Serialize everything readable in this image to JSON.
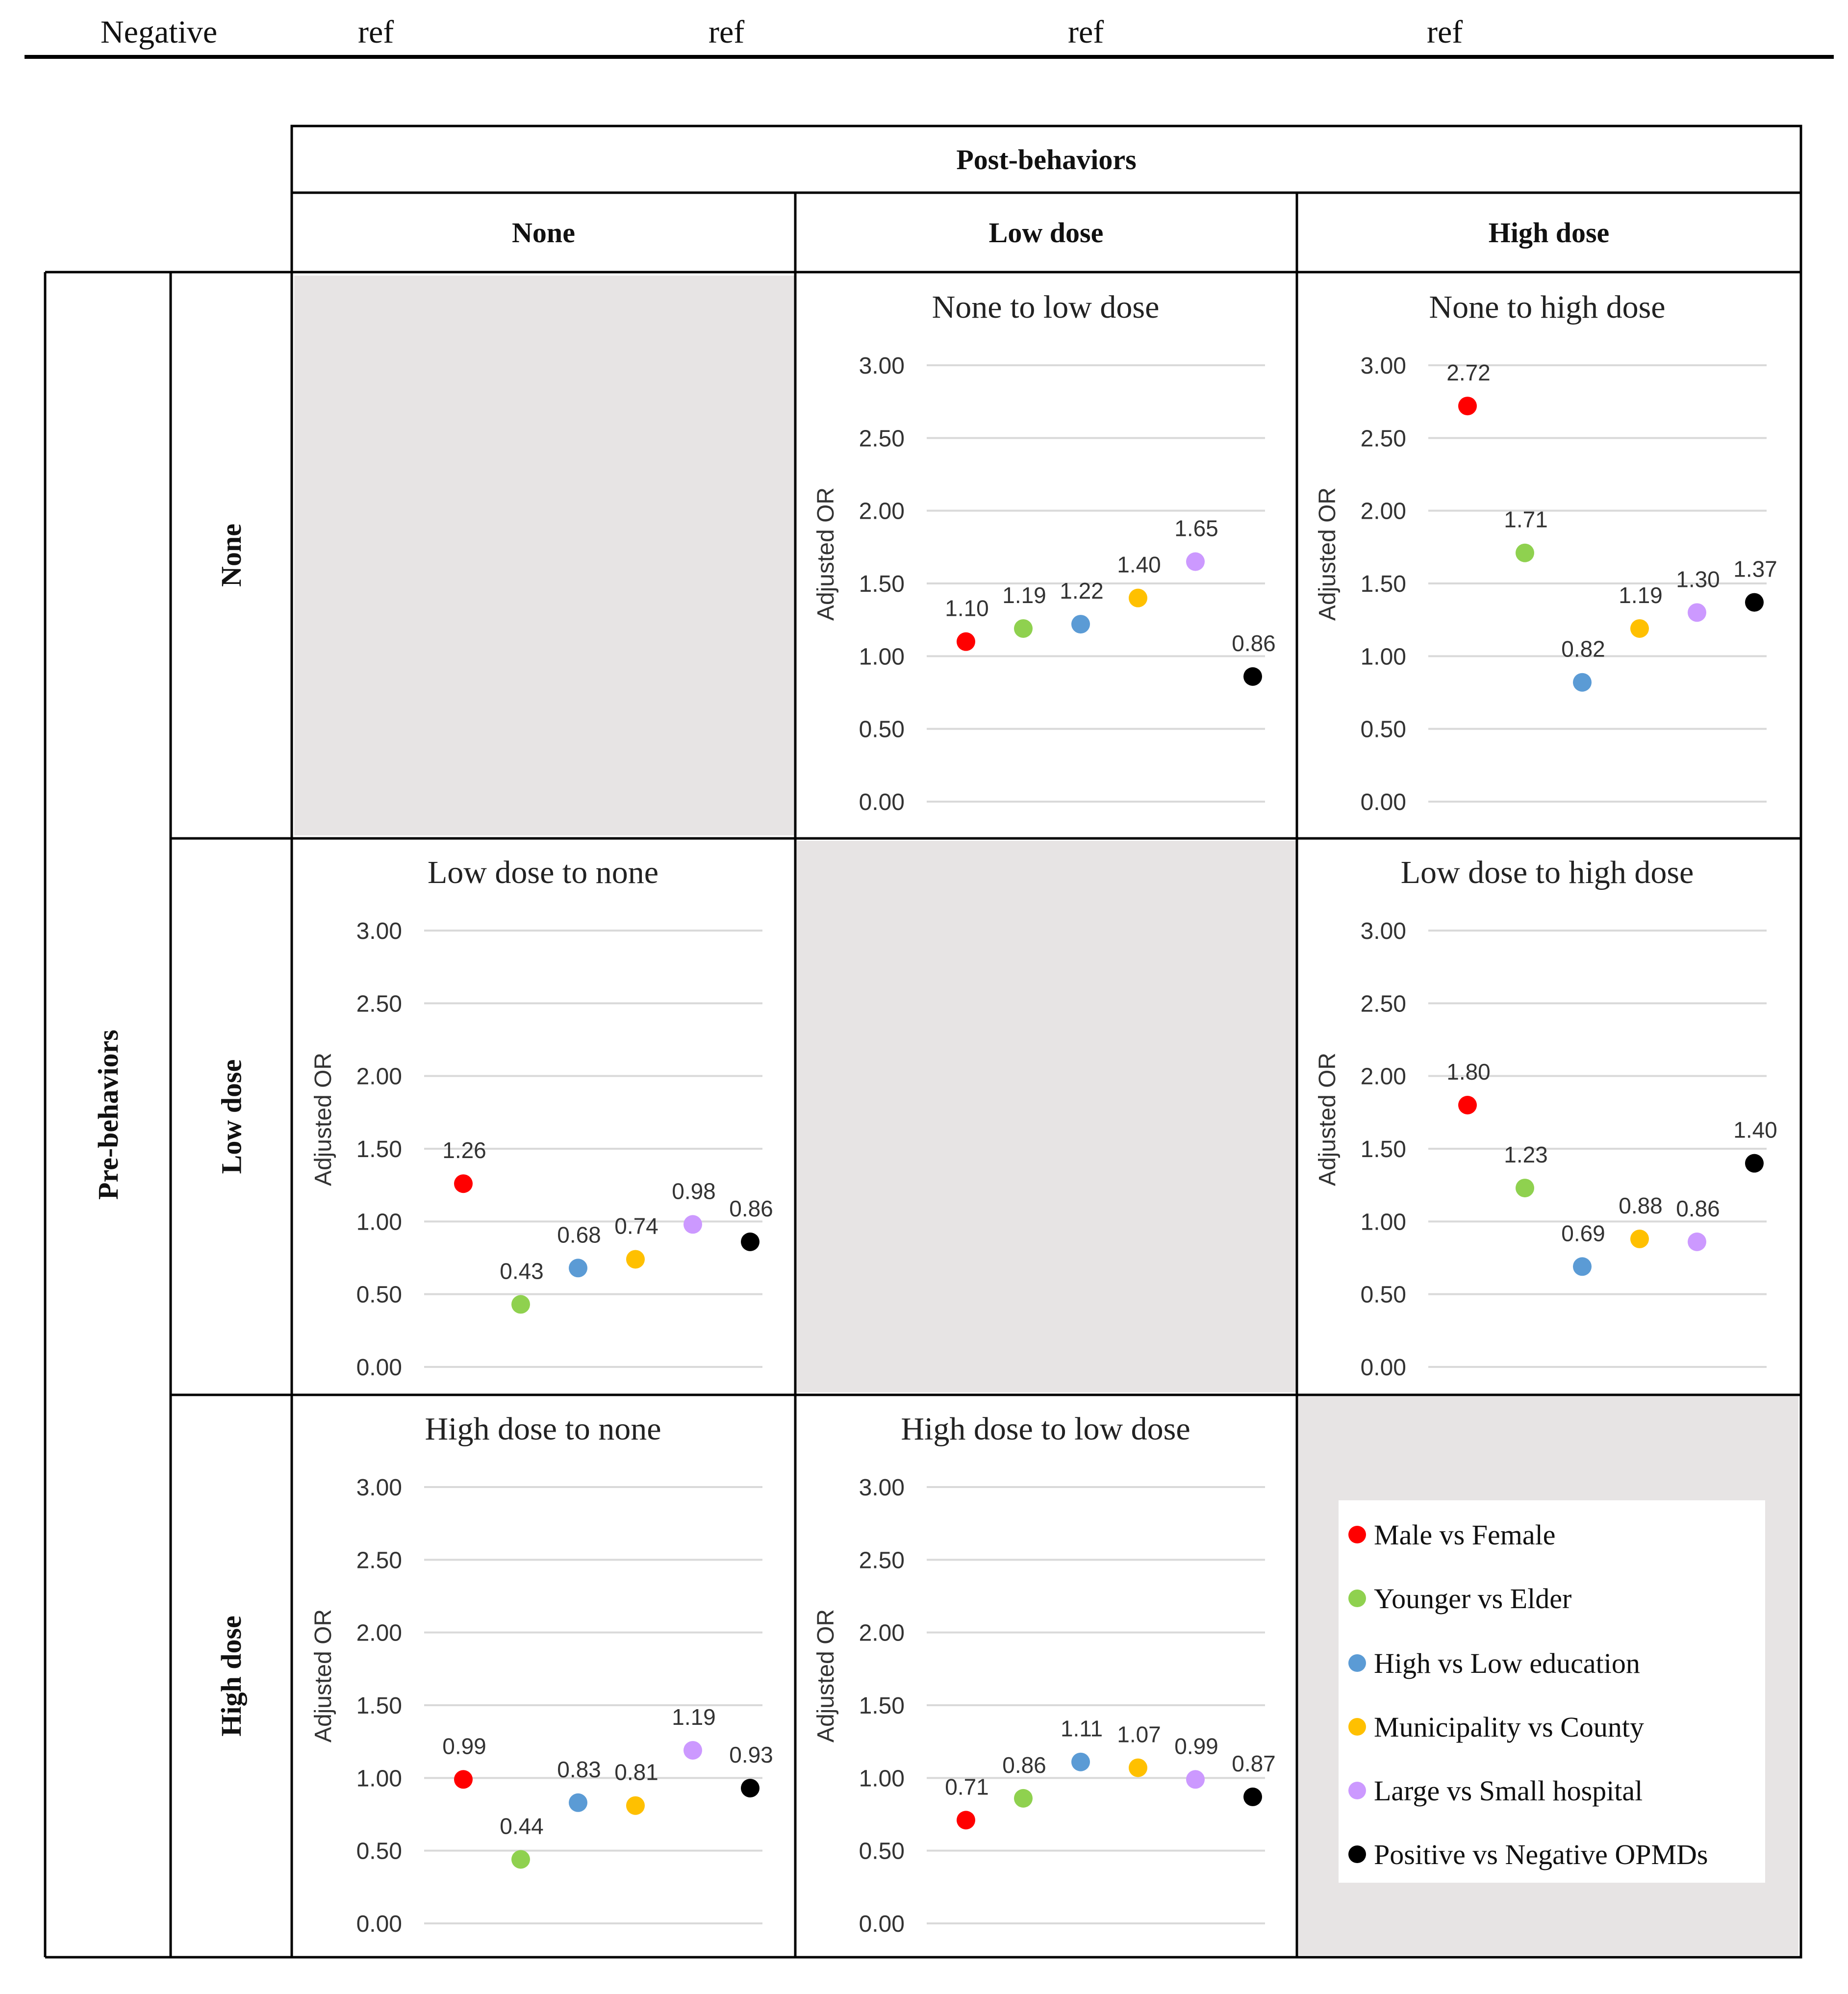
{
  "top_row": {
    "label": "Negative",
    "refs": [
      "ref",
      "ref",
      "ref",
      "ref"
    ]
  },
  "headers": {
    "post": "Post-behaviors",
    "post_cols": [
      "None",
      "Low dose",
      "High dose"
    ],
    "pre": "Pre-behaviors",
    "pre_rows": [
      "None",
      "Low dose",
      "High dose"
    ]
  },
  "colors": {
    "Male vs Female": "#ff0000",
    "Younger vs Elder": "#8fd14f",
    "High vs Low education": "#5b9bd5",
    "Municipality vs County": "#ffc000",
    "Large vs Small hospital": "#cc99ff",
    "Positive vs Negative OPMDs": "#000000"
  },
  "legend": [
    {
      "label": "Male vs Female",
      "color": "#ff0000"
    },
    {
      "label": "Younger vs Elder",
      "color": "#8fd14f"
    },
    {
      "label": "High vs Low education",
      "color": "#5b9bd5"
    },
    {
      "label": "Municipality vs County",
      "color": "#ffc000"
    },
    {
      "label": "Large vs Small hospital",
      "color": "#cc99ff"
    },
    {
      "label": "Positive vs Negative OPMDs",
      "color": "#000000"
    }
  ],
  "chart_data": [
    {
      "type": "scatter",
      "title": "None to low dose",
      "ylabel": "Adjusted OR",
      "yticks": [
        "0.00",
        "0.50",
        "1.00",
        "1.50",
        "2.00",
        "2.50",
        "3.00"
      ],
      "ylim": [
        0,
        3
      ],
      "categories": [
        "Male vs Female",
        "Younger vs Elder",
        "High vs Low education",
        "Municipality vs County",
        "Large vs Small hospital",
        "Positive vs Negative OPMDs"
      ],
      "values": [
        1.1,
        1.19,
        1.22,
        1.4,
        1.65,
        0.86
      ],
      "labels": [
        "1.10",
        "1.19",
        "1.22",
        "1.40",
        "1.65",
        "0.86"
      ]
    },
    {
      "type": "scatter",
      "title": "None to high dose",
      "ylabel": "Adjusted OR",
      "yticks": [
        "0.00",
        "0.50",
        "1.00",
        "1.50",
        "2.00",
        "2.50",
        "3.00"
      ],
      "ylim": [
        0,
        3
      ],
      "categories": [
        "Male vs Female",
        "Younger vs Elder",
        "High vs Low education",
        "Municipality vs County",
        "Large vs Small hospital",
        "Positive vs Negative OPMDs"
      ],
      "values": [
        2.72,
        1.71,
        0.82,
        1.19,
        1.3,
        1.37
      ],
      "labels": [
        "2.72",
        "1.71",
        "0.82",
        "1.19",
        "1.30",
        "1.37"
      ]
    },
    {
      "type": "scatter",
      "title": "Low dose to none",
      "ylabel": "Adjusted OR",
      "yticks": [
        "0.00",
        "0.50",
        "1.00",
        "1.50",
        "2.00",
        "2.50",
        "3.00"
      ],
      "ylim": [
        0,
        3
      ],
      "categories": [
        "Male vs Female",
        "Younger vs Elder",
        "High vs Low education",
        "Municipality vs County",
        "Large vs Small hospital",
        "Positive vs Negative OPMDs"
      ],
      "values": [
        1.26,
        0.43,
        0.68,
        0.74,
        0.98,
        0.86
      ],
      "labels": [
        "1.26",
        "0.43",
        "0.68",
        "0.74",
        "0.98",
        "0.86"
      ]
    },
    {
      "type": "scatter",
      "title": "Low dose to high dose",
      "ylabel": "Adjusted OR",
      "yticks": [
        "0.00",
        "0.50",
        "1.00",
        "1.50",
        "2.00",
        "2.50",
        "3.00"
      ],
      "ylim": [
        0,
        3
      ],
      "categories": [
        "Male vs Female",
        "Younger vs Elder",
        "High vs Low education",
        "Municipality vs County",
        "Large vs Small hospital",
        "Positive vs Negative OPMDs"
      ],
      "values": [
        1.8,
        1.23,
        0.69,
        0.88,
        0.86,
        1.4
      ],
      "labels": [
        "1.80",
        "1.23",
        "0.69",
        "0.88",
        "0.86",
        "1.40"
      ]
    },
    {
      "type": "scatter",
      "title": "High dose to none",
      "ylabel": "Adjusted OR",
      "yticks": [
        "0.00",
        "0.50",
        "1.00",
        "1.50",
        "2.00",
        "2.50",
        "3.00"
      ],
      "ylim": [
        0,
        3
      ],
      "categories": [
        "Male vs Female",
        "Younger vs Elder",
        "High vs Low education",
        "Municipality vs County",
        "Large vs Small hospital",
        "Positive vs Negative OPMDs"
      ],
      "values": [
        0.99,
        0.44,
        0.83,
        0.81,
        1.19,
        0.93
      ],
      "labels": [
        "0.99",
        "0.44",
        "0.83",
        "0.81",
        "1.19",
        "0.93"
      ]
    },
    {
      "type": "scatter",
      "title": "High dose to low dose",
      "ylabel": "Adjusted OR",
      "yticks": [
        "0.00",
        "0.50",
        "1.00",
        "1.50",
        "2.00",
        "2.50",
        "3.00"
      ],
      "ylim": [
        0,
        3
      ],
      "categories": [
        "Male vs Female",
        "Younger vs Elder",
        "High vs Low education",
        "Municipality vs County",
        "Large vs Small hospital",
        "Positive vs Negative OPMDs"
      ],
      "values": [
        0.71,
        0.86,
        1.11,
        1.07,
        0.99,
        0.87
      ],
      "labels": [
        "0.71",
        "0.86",
        "1.11",
        "1.07",
        "0.99",
        "0.87"
      ]
    }
  ]
}
